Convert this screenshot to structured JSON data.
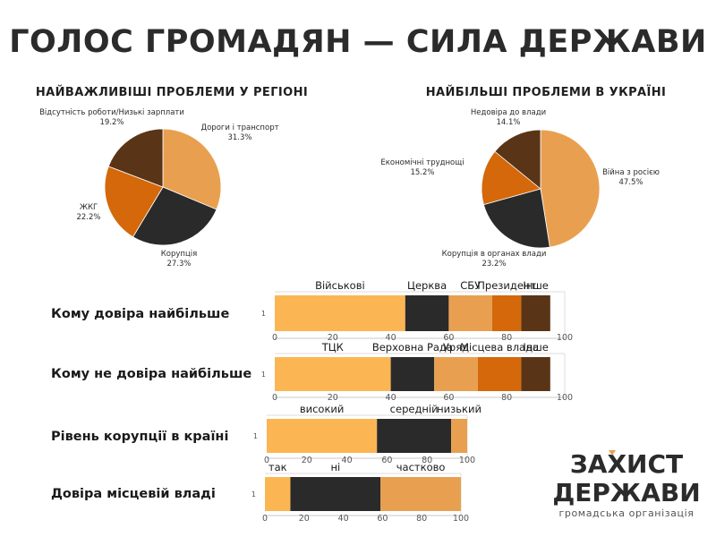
{
  "page": {
    "title": "ГОЛОС ГРОМАДЯН — СИЛА ДЕРЖАВИ"
  },
  "logo": {
    "line1": "ЗАХИСТ",
    "line2": "ДЕРЖАВИ",
    "subtitle": "громадська організація",
    "accent_color": "#e8a050"
  },
  "chart_data": [
    {
      "type": "pie",
      "title": "НАЙВАЖЛИВІШІ ПРОБЛЕМИ У РЕГІОНІ",
      "slices": [
        {
          "label": "Дороги і транспорт",
          "value": 31.3,
          "display": "31.3%",
          "color": "#e8a050"
        },
        {
          "label": "Корупція",
          "value": 27.3,
          "display": "27.3%",
          "color": "#2a2a2a"
        },
        {
          "label": "ЖКГ",
          "value": 22.2,
          "display": "22.2%",
          "color": "#d4680a"
        },
        {
          "label": "Відсутність роботи/Низькі зарплати",
          "value": 19.2,
          "display": "19.2%",
          "color": "#5a3416"
        }
      ]
    },
    {
      "type": "pie",
      "title": "НАЙБІЛЬШІ ПРОБЛЕМИ В УКРАЇНІ",
      "slices": [
        {
          "label": "Війна з росією",
          "value": 47.5,
          "display": "47.5%",
          "color": "#e8a050"
        },
        {
          "label": "Корупція в органах влади",
          "value": 23.2,
          "display": "23.2%",
          "color": "#2a2a2a"
        },
        {
          "label": "Економічні труднощі",
          "value": 15.2,
          "display": "15.2%",
          "color": "#d4680a"
        },
        {
          "label": "Недовіра до влади",
          "value": 14.1,
          "display": "14.1%",
          "color": "#5a3416"
        }
      ]
    },
    {
      "type": "bar",
      "orientation": "horizontal-stacked",
      "title": "Кому довіра найбільше",
      "y_categories": [
        "1"
      ],
      "xlim": [
        0,
        100
      ],
      "xticks": [
        0,
        20,
        40,
        60,
        80,
        100
      ],
      "series": [
        {
          "name": "Військові",
          "value": 45,
          "color": "#fbb653"
        },
        {
          "name": "Церква",
          "value": 15,
          "color": "#2a2a2a"
        },
        {
          "name": "СБУ",
          "value": 15,
          "color": "#e8a050"
        },
        {
          "name": "Президент",
          "value": 10,
          "color": "#d4680a"
        },
        {
          "name": "Інше",
          "value": 10,
          "color": "#5a3416"
        }
      ]
    },
    {
      "type": "bar",
      "orientation": "horizontal-stacked",
      "title": "Кому не довіра найбільше",
      "y_categories": [
        "1"
      ],
      "xlim": [
        0,
        100
      ],
      "xticks": [
        0,
        20,
        40,
        60,
        80,
        100
      ],
      "series": [
        {
          "name": "ТЦК",
          "value": 40,
          "color": "#fbb653"
        },
        {
          "name": "Верховна Рада",
          "value": 15,
          "color": "#2a2a2a"
        },
        {
          "name": "Уряд",
          "value": 15,
          "color": "#e8a050"
        },
        {
          "name": "Місцева влада",
          "value": 15,
          "color": "#d4680a"
        },
        {
          "name": "Інше",
          "value": 10,
          "color": "#5a3416"
        }
      ]
    },
    {
      "type": "bar",
      "orientation": "horizontal-stacked",
      "title": "Рівень корупції в країні",
      "y_categories": [
        "1"
      ],
      "xlim": [
        0,
        100
      ],
      "xticks": [
        0,
        20,
        40,
        60,
        80,
        100
      ],
      "series": [
        {
          "name": "високий",
          "value": 55,
          "color": "#fbb653"
        },
        {
          "name": "середній",
          "value": 37,
          "color": "#2a2a2a"
        },
        {
          "name": "низький",
          "value": 8,
          "color": "#e8a050"
        }
      ]
    },
    {
      "type": "bar",
      "orientation": "horizontal-stacked",
      "title": "Довіра місцевій владі",
      "y_categories": [
        "1"
      ],
      "xlim": [
        0,
        100
      ],
      "xticks": [
        0,
        20,
        40,
        60,
        80,
        100
      ],
      "series": [
        {
          "name": "так",
          "value": 13,
          "color": "#fbb653"
        },
        {
          "name": "ні",
          "value": 46,
          "color": "#2a2a2a"
        },
        {
          "name": "частково",
          "value": 41,
          "color": "#e8a050"
        }
      ]
    }
  ]
}
